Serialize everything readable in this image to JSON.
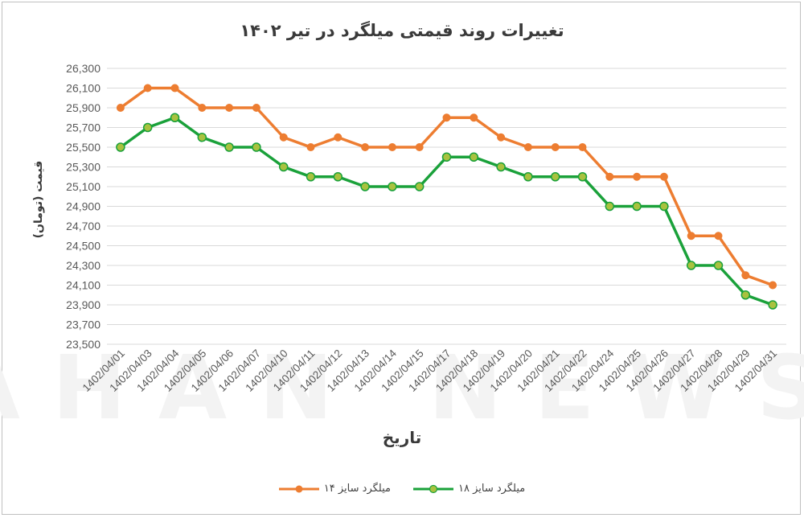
{
  "chart_data": {
    "type": "line",
    "title": "تغییرات روند قیمتی میلگرد در تیر ۱۴۰۲",
    "xlabel": "تاریخ",
    "ylabel": "قیمت (تومان)",
    "ylim": [
      23500,
      26300
    ],
    "y_ticks": [
      "26,300",
      "26,100",
      "25,900",
      "25,700",
      "25,500",
      "25,300",
      "25,100",
      "24,900",
      "24,700",
      "24,500",
      "24,300",
      "24,100",
      "23,900",
      "23,700",
      "23,500"
    ],
    "grid": true,
    "legend_position": "bottom",
    "categories": [
      "1402/04/01",
      "1402/04/03",
      "1402/04/04",
      "1402/04/05",
      "1402/04/06",
      "1402/04/07",
      "1402/04/10",
      "1402/04/11",
      "1402/04/12",
      "1402/04/13",
      "1402/04/14",
      "1402/04/15",
      "1402/04/17",
      "1402/04/18",
      "1402/04/19",
      "1402/04/20",
      "1402/04/21",
      "1402/04/22",
      "1402/04/24",
      "1402/04/25",
      "1402/04/26",
      "1402/04/27",
      "1402/04/28",
      "1402/04/29",
      "1402/04/31"
    ],
    "series": [
      {
        "name": "میلگرد سایز ۱۴",
        "color": "#ed7d31",
        "values": [
          25900,
          26100,
          26100,
          25900,
          25900,
          25900,
          25600,
          25500,
          25600,
          25500,
          25500,
          25500,
          25800,
          25800,
          25600,
          25500,
          25500,
          25500,
          25200,
          25200,
          25200,
          24600,
          24600,
          24200,
          24100
        ]
      },
      {
        "name": "میلگرد سایز ۱۸",
        "color": "#1aa13a",
        "marker_fill": "#a9c23f",
        "values": [
          25500,
          25700,
          25800,
          25600,
          25500,
          25500,
          25300,
          25200,
          25200,
          25100,
          25100,
          25100,
          25400,
          25400,
          25300,
          25200,
          25200,
          25200,
          24900,
          24900,
          24900,
          24300,
          24300,
          24000,
          23900
        ]
      }
    ]
  },
  "watermark": {
    "text": "AHAN NEWS"
  }
}
